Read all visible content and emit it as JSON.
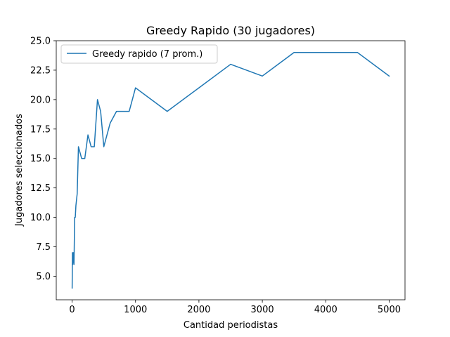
{
  "chart_data": {
    "type": "line",
    "title": "Greedy Rapido (30 jugadores)",
    "xlabel": "Cantidad periodistas",
    "ylabel": "Jugadores seleccionados",
    "xlim": [
      -250,
      5250
    ],
    "ylim": [
      3.0,
      25.0
    ],
    "xticks": [
      0,
      1000,
      2000,
      3000,
      4000,
      5000
    ],
    "xtick_labels": [
      "0",
      "1000",
      "2000",
      "3000",
      "4000",
      "5000"
    ],
    "yticks": [
      5.0,
      7.5,
      10.0,
      12.5,
      15.0,
      17.5,
      20.0,
      22.5,
      25.0
    ],
    "ytick_labels": [
      "5.0",
      "7.5",
      "10.0",
      "12.5",
      "15.0",
      "17.5",
      "20.0",
      "22.5",
      "25.0"
    ],
    "grid": false,
    "legend_position": "top-left",
    "series": [
      {
        "name": "Greedy rapido  (7 prom.)",
        "color": "#1f77b4",
        "x": [
          1,
          5,
          10,
          20,
          30,
          40,
          50,
          60,
          80,
          100,
          150,
          200,
          250,
          300,
          350,
          400,
          450,
          500,
          600,
          700,
          800,
          900,
          1000,
          1500,
          2000,
          2500,
          3000,
          3500,
          4000,
          4500,
          5000
        ],
        "y": [
          4,
          7,
          6,
          7,
          6,
          10,
          10,
          11,
          12,
          16,
          15,
          15,
          17,
          16,
          16,
          20,
          19,
          16,
          18,
          19,
          19,
          19,
          21,
          19,
          21,
          23,
          22,
          24,
          24,
          24,
          22
        ]
      }
    ]
  }
}
